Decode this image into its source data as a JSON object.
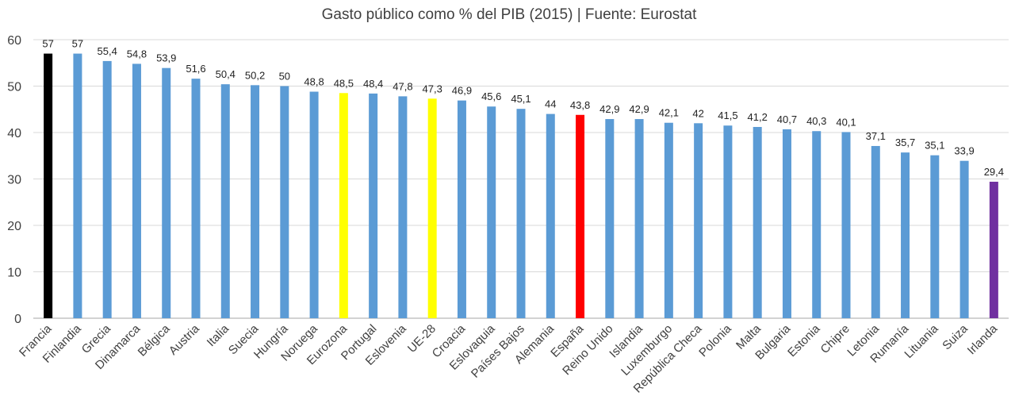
{
  "chart_data": {
    "type": "bar",
    "title": "Gasto público como % del PIB (2015) | Fuente: Eurostat",
    "xlabel": "",
    "ylabel": "",
    "ylim": [
      0,
      60
    ],
    "yticks": [
      0,
      10,
      20,
      30,
      40,
      50,
      60
    ],
    "grid": true,
    "legend": "none",
    "categories": [
      "Francia",
      "Finlandia",
      "Grecia",
      "Dinamarca",
      "Bélgica",
      "Austria",
      "Italia",
      "Suecia",
      "Hungría",
      "Noruega",
      "Eurozona",
      "Portugal",
      "Eslovenia",
      "UE-28",
      "Croacia",
      "Eslovaquia",
      "Países Bajos",
      "Alemania",
      "España",
      "Reino Unido",
      "Islandia",
      "Luxemburgo",
      "República Checa",
      "Polonia",
      "Malta",
      "Bulgaria",
      "Estonia",
      "Chipre",
      "Letonia",
      "Rumanía",
      "Lituania",
      "Suiza",
      "Irlanda"
    ],
    "values": [
      57,
      57,
      55.4,
      54.8,
      53.9,
      51.6,
      50.4,
      50.2,
      50,
      48.8,
      48.5,
      48.4,
      47.8,
      47.3,
      46.9,
      45.6,
      45.1,
      44,
      43.8,
      42.9,
      42.9,
      42.1,
      42,
      41.5,
      41.2,
      40.7,
      40.3,
      40.1,
      37.1,
      35.7,
      35.1,
      33.9,
      29.4
    ],
    "value_labels": [
      "57",
      "57",
      "55,4",
      "54,8",
      "53,9",
      "51,6",
      "50,4",
      "50,2",
      "50",
      "48,8",
      "48,5",
      "48,4",
      "47,8",
      "47,3",
      "46,9",
      "45,6",
      "45,1",
      "44",
      "43,8",
      "42,9",
      "42,9",
      "42,1",
      "42",
      "41,5",
      "41,2",
      "40,7",
      "40,3",
      "40,1",
      "37,1",
      "35,7",
      "35,1",
      "33,9",
      "29,4"
    ],
    "colors": {
      "default": "#5b9bd5",
      "Francia": "#000000",
      "Eurozona": "#ffff00",
      "UE-28": "#ffff00",
      "España": "#ff0000",
      "Irlanda": "#7030a0"
    }
  }
}
